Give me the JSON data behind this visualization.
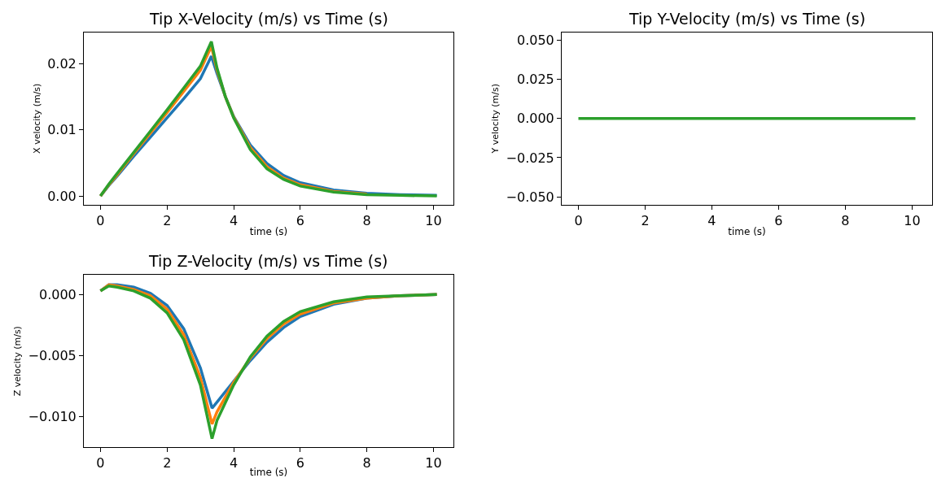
{
  "chart_data": [
    {
      "type": "line",
      "title": "Tip X-Velocity (m/s) vs Time (s)",
      "xlabel": "time (s)",
      "ylabel": "X velocity (m/s)",
      "x": [
        0,
        0.25,
        0.5,
        1,
        1.5,
        2,
        2.5,
        3,
        3.33,
        3.5,
        3.75,
        4,
        4.5,
        5,
        5.5,
        6,
        7,
        8,
        9,
        10.1
      ],
      "series": [
        {
          "color": "#1f77b4",
          "values": [
            0,
            0.0016,
            0.003,
            0.006,
            0.0089,
            0.0118,
            0.0147,
            0.0177,
            0.0211,
            0.0185,
            0.015,
            0.012,
            0.0077,
            0.0049,
            0.0031,
            0.002,
            0.0009,
            0.0004,
            0.0002,
            0.0001
          ]
        },
        {
          "color": "#ff7f0e",
          "values": [
            0,
            0.0017,
            0.0032,
            0.0064,
            0.0095,
            0.0126,
            0.0158,
            0.019,
            0.0226,
            0.019,
            0.015,
            0.0119,
            0.0073,
            0.0044,
            0.0027,
            0.0017,
            0.0007,
            0.0003,
            null,
            null
          ]
        },
        {
          "color": "#2ca02c",
          "values": [
            0,
            0.0018,
            0.0034,
            0.0066,
            0.0098,
            0.013,
            0.0163,
            0.0196,
            0.0233,
            0.0193,
            0.015,
            0.0118,
            0.007,
            0.0041,
            0.0025,
            0.0015,
            0.0006,
            0.0002,
            0.0001,
            0
          ]
        }
      ],
      "xlim": [
        -0.5,
        10.6
      ],
      "xticks": [
        0,
        2,
        4,
        6,
        8,
        10
      ],
      "ylim": [
        -0.0013,
        0.0247
      ],
      "yticks": [
        {
          "value": 0,
          "label": "0.00"
        },
        {
          "value": 0.01,
          "label": "0.01"
        },
        {
          "value": 0.02,
          "label": "0.02"
        }
      ]
    },
    {
      "type": "line",
      "title": "Tip Y-Velocity (m/s) vs Time (s)",
      "xlabel": "time (s)",
      "ylabel": "Y velocity (m/s)",
      "x": [
        0,
        10.1
      ],
      "series": [
        {
          "color": "#2ca02c",
          "values": [
            0,
            0
          ]
        }
      ],
      "xlim": [
        -0.5,
        10.6
      ],
      "xticks": [
        0,
        2,
        4,
        6,
        8,
        10
      ],
      "ylim": [
        -0.055,
        0.055
      ],
      "yticks": [
        {
          "value": -0.05,
          "label": "−0.050"
        },
        {
          "value": -0.025,
          "label": "−0.025"
        },
        {
          "value": 0,
          "label": "0.000"
        },
        {
          "value": 0.025,
          "label": "0.025"
        },
        {
          "value": 0.05,
          "label": "0.050"
        }
      ]
    },
    {
      "type": "line",
      "title": "Tip Z-Velocity (m/s) vs Time (s)",
      "xlabel": "time (s)",
      "ylabel": "Z velocity (m/s)",
      "x": [
        0,
        0.25,
        0.5,
        1,
        1.5,
        2,
        2.5,
        3,
        3.35,
        3.5,
        4,
        4.5,
        5,
        5.5,
        6,
        7,
        8,
        9,
        10.1
      ],
      "series": [
        {
          "color": "#1f77b4",
          "values": [
            0.0003,
            0.0008,
            0.0008,
            0.0006,
            0.0001,
            -0.0009,
            -0.0028,
            -0.006,
            -0.0093,
            -0.0088,
            -0.0071,
            -0.0054,
            -0.0039,
            -0.0027,
            -0.0018,
            -0.0008,
            -0.0003,
            -0.0001,
            0
          ]
        },
        {
          "color": "#ff7f0e",
          "values": [
            0.0003,
            0.0008,
            0.0007,
            0.0004,
            -0.0001,
            -0.0012,
            -0.0033,
            -0.0068,
            -0.0106,
            -0.0096,
            -0.0072,
            -0.0052,
            -0.0036,
            -0.0024,
            -0.0016,
            -0.0007,
            -0.0003,
            -0.0001,
            0
          ]
        },
        {
          "color": "#2ca02c",
          "values": [
            0.0003,
            0.0007,
            0.0006,
            0.0003,
            -0.0003,
            -0.0015,
            -0.0037,
            -0.0074,
            -0.0118,
            -0.0103,
            -0.0074,
            -0.0051,
            -0.0034,
            -0.0022,
            -0.0014,
            -0.0006,
            -0.0002,
            -0.0001,
            0
          ]
        }
      ],
      "xlim": [
        -0.5,
        10.6
      ],
      "xticks": [
        0,
        2,
        4,
        6,
        8,
        10
      ],
      "ylim": [
        -0.0125,
        0.0016
      ],
      "yticks": [
        {
          "value": -0.01,
          "label": "−0.010"
        },
        {
          "value": -0.005,
          "label": "−0.005"
        },
        {
          "value": 0,
          "label": "0.000"
        }
      ]
    }
  ]
}
